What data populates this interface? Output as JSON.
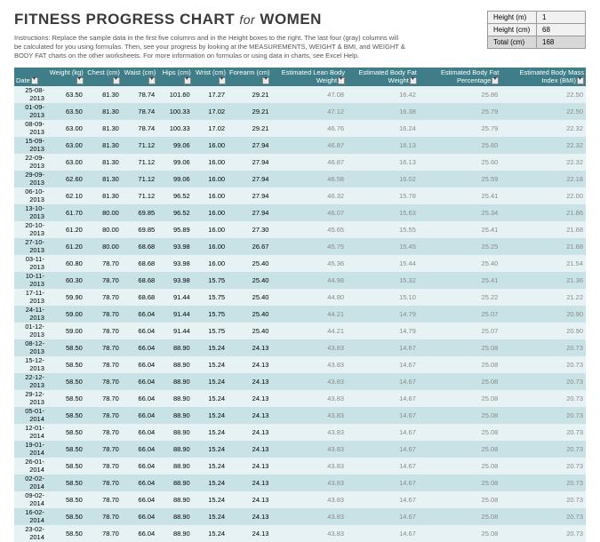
{
  "title_main": "FITNESS PROGRESS CHART",
  "title_for": "for",
  "title_sub": "WOMEN",
  "instructions": "Instructions: Replace the sample data in the first five columns and in the Height boxes to the right. The last four (gray) columns will be calculated for you using formulas. Then, see your progress by looking at the MEASUREMENTS, WEIGHT & BMI, and WEIGHT & BODY FAT charts on the other worksheets. For more information on formulas or using data in charts, see Excel Help.",
  "height_box": {
    "rows": [
      {
        "label": "Height (m)",
        "value": "1",
        "cls": "lbl"
      },
      {
        "label": "Height (cm)",
        "value": "68",
        "cls": "lbl"
      },
      {
        "label": "Total (cm)",
        "value": "168",
        "cls": "tot"
      }
    ]
  },
  "columns": [
    "Date",
    "Weight (kg)",
    "Chest (cm)",
    "Waist (cm)",
    "Hips (cm)",
    "Wrist (cm)",
    "Forearm (cm)",
    "Estimated Lean Body Weight",
    "Estimated Body Fat Weight",
    "Estimated Body Fat Percentage",
    "Estimated Body Mass Index (BMI)"
  ],
  "gray_cols": [
    7,
    8,
    9,
    10
  ],
  "rows": [
    [
      "25-08-2013",
      "63.50",
      "81.30",
      "78.74",
      "101.60",
      "17.27",
      "29.21",
      "47.08",
      "16.42",
      "25.86",
      "22.50"
    ],
    [
      "01-09-2013",
      "63.50",
      "81.30",
      "78.74",
      "100.33",
      "17.02",
      "29.21",
      "47.12",
      "16.38",
      "25.79",
      "22.50"
    ],
    [
      "08-09-2013",
      "63.00",
      "81.30",
      "78.74",
      "100.33",
      "17.02",
      "29.21",
      "46.76",
      "16.24",
      "25.79",
      "22.32"
    ],
    [
      "15-09-2013",
      "63.00",
      "81.30",
      "71.12",
      "99.06",
      "16.00",
      "27.94",
      "46.87",
      "16.13",
      "25.60",
      "22.32"
    ],
    [
      "22-09-2013",
      "63.00",
      "81.30",
      "71.12",
      "99.06",
      "16.00",
      "27.94",
      "46.87",
      "16.13",
      "25.60",
      "22.32"
    ],
    [
      "29-09-2013",
      "62.60",
      "81.30",
      "71.12",
      "99.06",
      "16.00",
      "27.94",
      "46.58",
      "16.02",
      "25.59",
      "22.18"
    ],
    [
      "06-10-2013",
      "62.10",
      "81.30",
      "71.12",
      "96.52",
      "16.00",
      "27.94",
      "46.32",
      "15.78",
      "25.41",
      "22.00"
    ],
    [
      "13-10-2013",
      "61.70",
      "80.00",
      "69.85",
      "96.52",
      "16.00",
      "27.94",
      "46.07",
      "15.63",
      "25.34",
      "21.86"
    ],
    [
      "20-10-2013",
      "61.20",
      "80.00",
      "69.85",
      "95.89",
      "16.00",
      "27.30",
      "45.65",
      "15.55",
      "25.41",
      "21.68"
    ],
    [
      "27-10-2013",
      "61.20",
      "80.00",
      "68.68",
      "93.98",
      "16.00",
      "26.67",
      "45.75",
      "15.45",
      "25.25",
      "21.68"
    ],
    [
      "03-11-2013",
      "60.80",
      "78.70",
      "68.68",
      "93.98",
      "16.00",
      "25.40",
      "45.36",
      "15.44",
      "25.40",
      "21.54"
    ],
    [
      "10-11-2013",
      "60.30",
      "78.70",
      "68.68",
      "93.98",
      "15.75",
      "25.40",
      "44.98",
      "15.32",
      "25.41",
      "21.36"
    ],
    [
      "17-11-2013",
      "59.90",
      "78.70",
      "68.68",
      "91.44",
      "15.75",
      "25.40",
      "44.80",
      "15.10",
      "25.22",
      "21.22"
    ],
    [
      "24-11-2013",
      "59.00",
      "78.70",
      "66.04",
      "91.44",
      "15.75",
      "25.40",
      "44.21",
      "14.79",
      "25.07",
      "20.90"
    ],
    [
      "01-12-2013",
      "59.00",
      "78.70",
      "66.04",
      "91.44",
      "15.75",
      "25.40",
      "44.21",
      "14.79",
      "25.07",
      "20.90"
    ],
    [
      "08-12-2013",
      "58.50",
      "78.70",
      "66.04",
      "88.90",
      "15.24",
      "24.13",
      "43.83",
      "14.67",
      "25.08",
      "20.73"
    ],
    [
      "15-12-2013",
      "58.50",
      "78.70",
      "66.04",
      "88.90",
      "15.24",
      "24.13",
      "43.83",
      "14.67",
      "25.08",
      "20.73"
    ],
    [
      "22-12-2013",
      "58.50",
      "78.70",
      "66.04",
      "88.90",
      "15.24",
      "24.13",
      "43.83",
      "14.67",
      "25.08",
      "20.73"
    ],
    [
      "29-12-2013",
      "58.50",
      "78.70",
      "66.04",
      "88.90",
      "15.24",
      "24.13",
      "43.83",
      "14.67",
      "25.08",
      "20.73"
    ],
    [
      "05-01-2014",
      "58.50",
      "78.70",
      "66.04",
      "88.90",
      "15.24",
      "24.13",
      "43.83",
      "14.67",
      "25.08",
      "20.73"
    ],
    [
      "12-01-2014",
      "58.50",
      "78.70",
      "66.04",
      "88.90",
      "15.24",
      "24.13",
      "43.83",
      "14.67",
      "25.08",
      "20.73"
    ],
    [
      "19-01-2014",
      "58.50",
      "78.70",
      "66.04",
      "88.90",
      "15.24",
      "24.13",
      "43.83",
      "14.67",
      "25.08",
      "20.73"
    ],
    [
      "26-01-2014",
      "58.50",
      "78.70",
      "66.04",
      "88.90",
      "15.24",
      "24.13",
      "43.83",
      "14.67",
      "25.08",
      "20.73"
    ],
    [
      "02-02-2014",
      "58.50",
      "78.70",
      "66.04",
      "88.90",
      "15.24",
      "24.13",
      "43.83",
      "14.67",
      "25.08",
      "20.73"
    ],
    [
      "09-02-2014",
      "58.50",
      "78.70",
      "66.04",
      "88.90",
      "15.24",
      "24.13",
      "43.83",
      "14.67",
      "25.08",
      "20.73"
    ],
    [
      "16-02-2014",
      "58.50",
      "78.70",
      "66.04",
      "88.90",
      "15.24",
      "24.13",
      "43.83",
      "14.67",
      "25.08",
      "20.73"
    ],
    [
      "23-02-2014",
      "58.50",
      "78.70",
      "66.04",
      "88.90",
      "15.24",
      "24.13",
      "43.83",
      "14.67",
      "25.08",
      "20.73"
    ]
  ]
}
